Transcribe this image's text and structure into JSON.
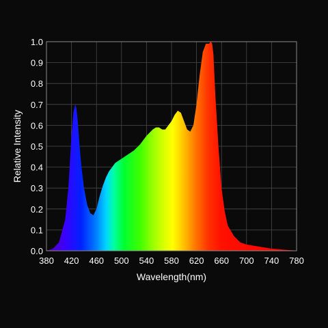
{
  "chart_data": {
    "type": "area",
    "title": "",
    "xlabel": "Wavelength(nm)",
    "ylabel": "Relative Intensity",
    "xlim": [
      380,
      780
    ],
    "ylim": [
      0,
      1.0
    ],
    "grid": true,
    "background": "#0a0a0a",
    "x_ticks": [
      380,
      420,
      460,
      500,
      540,
      580,
      620,
      660,
      700,
      740,
      780
    ],
    "x_tick_labels": [
      "380",
      "420",
      "460",
      "500",
      "540",
      "580",
      "620",
      "660",
      "700",
      "740",
      "780"
    ],
    "y_ticks": [
      0.0,
      0.1,
      0.2,
      0.3,
      0.4,
      0.5,
      0.6,
      0.7,
      0.8,
      0.9,
      1.0
    ],
    "y_tick_labels": [
      "0.0",
      "0.1",
      "0.2",
      "0.3",
      "0.4",
      "0.5",
      "0.6",
      "0.7",
      "0.8",
      "0.9",
      "1.0"
    ],
    "fill": "visible-spectrum gradient by wavelength",
    "series": [
      {
        "x": [
          380,
          390,
          400,
          410,
          415,
          420,
          423,
          426,
          428,
          430,
          433,
          436,
          440,
          445,
          450,
          455,
          460,
          465,
          470,
          475,
          480,
          485,
          490,
          495,
          500,
          510,
          520,
          530,
          540,
          550,
          555,
          560,
          565,
          570,
          575,
          580,
          585,
          590,
          595,
          600,
          605,
          610,
          615,
          620,
          625,
          630,
          635,
          640,
          643,
          645,
          647,
          650,
          655,
          660,
          665,
          670,
          680,
          690,
          700,
          710,
          720,
          730,
          740,
          750,
          760,
          770,
          775,
          780
        ],
        "y": [
          0.0,
          0.01,
          0.04,
          0.15,
          0.3,
          0.55,
          0.66,
          0.7,
          0.68,
          0.62,
          0.5,
          0.4,
          0.3,
          0.22,
          0.18,
          0.17,
          0.2,
          0.26,
          0.31,
          0.35,
          0.38,
          0.4,
          0.42,
          0.43,
          0.44,
          0.46,
          0.48,
          0.51,
          0.55,
          0.58,
          0.59,
          0.59,
          0.58,
          0.58,
          0.6,
          0.62,
          0.65,
          0.67,
          0.66,
          0.62,
          0.58,
          0.57,
          0.6,
          0.7,
          0.84,
          0.95,
          0.99,
          0.99,
          1.0,
          0.99,
          0.94,
          0.75,
          0.5,
          0.3,
          0.19,
          0.12,
          0.07,
          0.04,
          0.03,
          0.025,
          0.02,
          0.015,
          0.01,
          0.008,
          0.005,
          0.003,
          0.002,
          0.0
        ]
      }
    ]
  }
}
